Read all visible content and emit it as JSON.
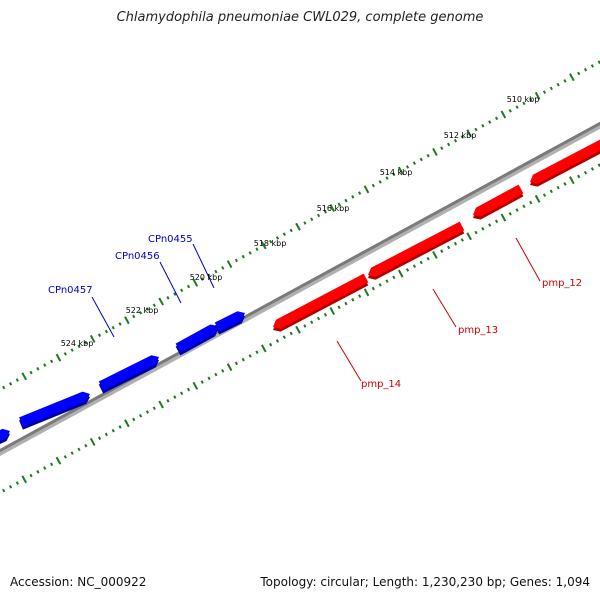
{
  "title": "Chlamydophila pneumoniae CWL029, complete genome",
  "footer": {
    "accession": "Accession: NC_000922",
    "summary": "Topology: circular; Length: 1,230,230 bp; Genes: 1,094"
  },
  "colors": {
    "backbone": "#7a7a7a",
    "forward_genes": "#ff0000",
    "reverse_genes": "#0000ff",
    "ticks": "#1e7a1e",
    "scale_text": "#000000"
  },
  "scale_labels": [
    "510 kbp",
    "512 kbp",
    "514 kbp",
    "516 kbp",
    "518 kbp",
    "520 kbp",
    "522 kbp",
    "524 kbp"
  ],
  "gene_labels": [
    {
      "name": "CPn0455",
      "strand": "reverse"
    },
    {
      "name": "CPn0456",
      "strand": "reverse"
    },
    {
      "name": "CPn0457",
      "strand": "reverse"
    },
    {
      "name": "pmp_12",
      "strand": "forward"
    },
    {
      "name": "pmp_13",
      "strand": "forward"
    },
    {
      "name": "pmp_14",
      "strand": "forward"
    }
  ]
}
